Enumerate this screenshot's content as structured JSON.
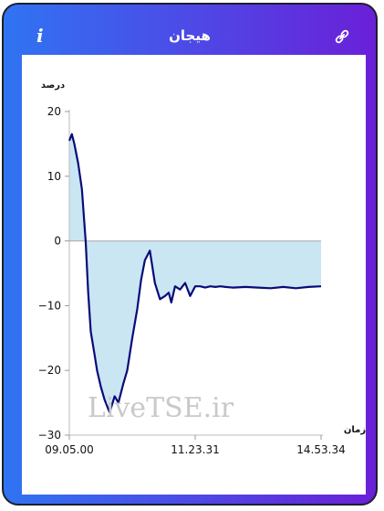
{
  "header": {
    "title": "هیجان",
    "info_icon": "info-icon",
    "link_icon": "link-icon"
  },
  "colors": {
    "frame_start": "#2f74f2",
    "frame_end": "#6a20d8",
    "line": "#0a0a7a",
    "fill": "#c9e6f2"
  },
  "watermark": "LiveTSE.ir",
  "chart_data": {
    "type": "area",
    "ylabel": "درصد",
    "xlabel": "زمان",
    "ylim": [
      -30,
      20
    ],
    "yticks": [
      20,
      10,
      0,
      -10,
      -20,
      -30
    ],
    "xtick_labels": [
      "09.05.00",
      "11.23.31",
      "14.53.34"
    ],
    "x_range": [
      "09.05.00",
      "14.53.34"
    ],
    "baseline": 0,
    "grid": false,
    "series": [
      {
        "x": [
          0,
          0.01,
          0.02,
          0.035,
          0.05,
          0.065,
          0.075,
          0.085,
          0.1,
          0.11,
          0.125,
          0.14,
          0.16,
          0.18,
          0.195,
          0.215,
          0.23,
          0.25,
          0.27,
          0.285,
          0.3,
          0.32,
          0.34,
          0.36,
          0.38,
          0.395,
          0.405,
          0.42,
          0.44,
          0.46,
          0.48,
          0.5,
          0.52,
          0.54,
          0.56,
          0.58,
          0.6,
          0.62,
          0.65,
          0.7,
          0.75,
          0.8,
          0.85,
          0.9,
          0.95,
          1.0
        ],
        "y": [
          15.5,
          16.5,
          15.0,
          12.0,
          8.0,
          0.0,
          -8.0,
          -14.0,
          -17.5,
          -20.0,
          -22.5,
          -24.5,
          -26.5,
          -24.0,
          -25.0,
          -22.0,
          -20.0,
          -15.0,
          -10.5,
          -6.0,
          -3.0,
          -1.5,
          -6.5,
          -9.0,
          -8.5,
          -8.0,
          -9.5,
          -7.0,
          -7.5,
          -6.5,
          -8.5,
          -7.0,
          -7.0,
          -7.2,
          -7.0,
          -7.1,
          -7.0,
          -7.1,
          -7.2,
          -7.1,
          -7.2,
          -7.3,
          -7.1,
          -7.3,
          -7.1,
          -7.0
        ]
      }
    ]
  }
}
